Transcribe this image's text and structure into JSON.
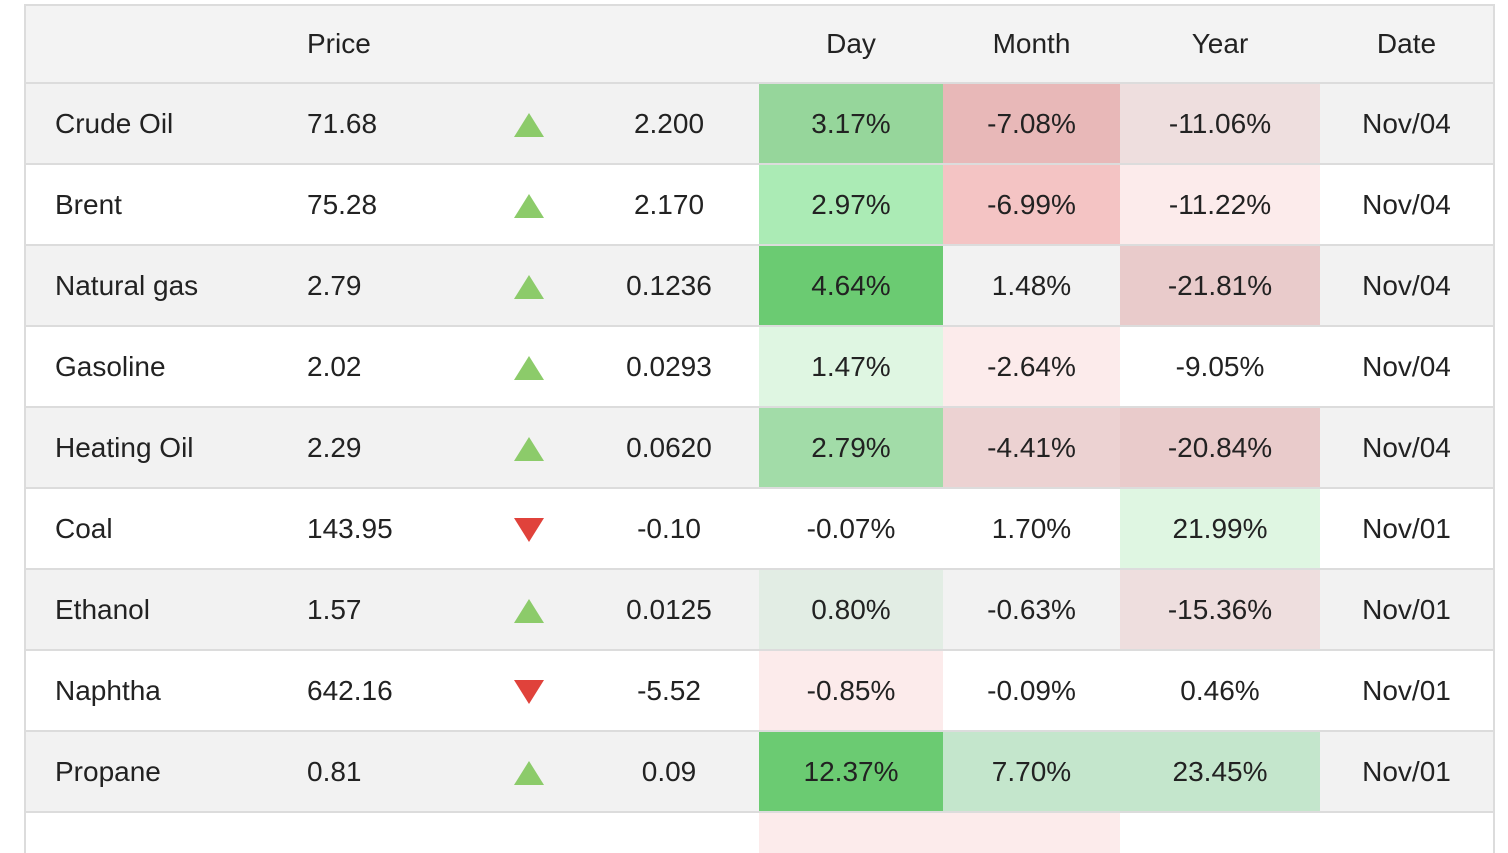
{
  "table": {
    "headers": {
      "name": "",
      "price": "Price",
      "arrow": "",
      "change": "",
      "day": "Day",
      "month": "Month",
      "year": "Year",
      "date": "Date"
    },
    "rows": [
      {
        "name": "Crude Oil",
        "price": "71.68",
        "direction": "up",
        "change": "2.200",
        "day": "3.17%",
        "month": "-7.08%",
        "year": "-11.06%",
        "date": "Nov/04",
        "day_color": "#96d69b",
        "month_color": "#e8b8b8",
        "year_color": "#eedede"
      },
      {
        "name": "Brent",
        "price": "75.28",
        "direction": "up",
        "change": "2.170",
        "day": "2.97%",
        "month": "-6.99%",
        "year": "-11.22%",
        "date": "Nov/04",
        "day_color": "#abebb5",
        "month_color": "#f4c4c4",
        "year_color": "#fcebeb"
      },
      {
        "name": "Natural gas",
        "price": "2.79",
        "direction": "up",
        "change": "0.1236",
        "day": "4.64%",
        "month": "1.48%",
        "year": "-21.81%",
        "date": "Nov/04",
        "day_color": "#6bcb72",
        "month_color": "#f2f2f2",
        "year_color": "#e9cbcb"
      },
      {
        "name": "Gasoline",
        "price": "2.02",
        "direction": "up",
        "change": "0.0293",
        "day": "1.47%",
        "month": "-2.64%",
        "year": "-9.05%",
        "date": "Nov/04",
        "day_color": "#dff6e2",
        "month_color": "#fcebeb",
        "year_color": "#ffffff"
      },
      {
        "name": "Heating Oil",
        "price": "2.29",
        "direction": "up",
        "change": "0.0620",
        "day": "2.79%",
        "month": "-4.41%",
        "year": "-20.84%",
        "date": "Nov/04",
        "day_color": "#a2dca8",
        "month_color": "#ecd2d2",
        "year_color": "#e9cbcb"
      },
      {
        "name": "Coal",
        "price": "143.95",
        "direction": "down",
        "change": "-0.10",
        "day": "-0.07%",
        "month": "1.70%",
        "year": "21.99%",
        "date": "Nov/01",
        "day_color": "#ffffff",
        "month_color": "#ffffff",
        "year_color": "#dff6e2"
      },
      {
        "name": "Ethanol",
        "price": "1.57",
        "direction": "up",
        "change": "0.0125",
        "day": "0.80%",
        "month": "-0.63%",
        "year": "-15.36%",
        "date": "Nov/01",
        "day_color": "#e2ede4",
        "month_color": "#f2f2f2",
        "year_color": "#eedede"
      },
      {
        "name": "Naphtha",
        "price": "642.16",
        "direction": "down",
        "change": "-5.52",
        "day": "-0.85%",
        "month": "-0.09%",
        "year": "0.46%",
        "date": "Nov/01",
        "day_color": "#fcebeb",
        "month_color": "#ffffff",
        "year_color": "#ffffff"
      },
      {
        "name": "Propane",
        "price": "0.81",
        "direction": "up",
        "change": "0.09",
        "day": "12.37%",
        "month": "7.70%",
        "year": "23.45%",
        "date": "Nov/01",
        "day_color": "#6bcb72",
        "month_color": "#c4e6cc",
        "year_color": "#c4e6cc"
      }
    ],
    "partial_row": {
      "day_color": "#fcebeb",
      "month_color": "#fcebeb"
    }
  }
}
